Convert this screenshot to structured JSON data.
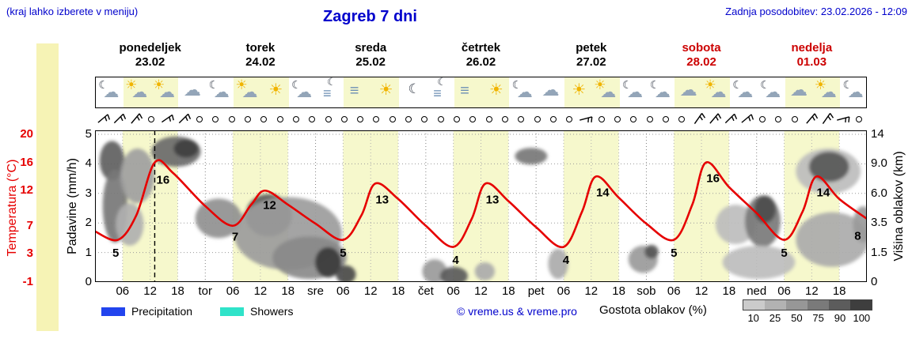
{
  "header": {
    "hint": "(kraj lahko izberete v meniju)",
    "title": "Zagreb 7 dni",
    "updated": "Zadnja posodobitev: 23.02.2026 - 12:09"
  },
  "days": [
    {
      "name": "ponedeljek",
      "date": "23.02",
      "color": "#000000"
    },
    {
      "name": "torek",
      "date": "24.02",
      "color": "#000000"
    },
    {
      "name": "sreda",
      "date": "25.02",
      "color": "#000000"
    },
    {
      "name": "četrtek",
      "date": "26.02",
      "color": "#000000"
    },
    {
      "name": "petek",
      "date": "27.02",
      "color": "#000000"
    },
    {
      "name": "sobota",
      "date": "28.02",
      "color": "#cc0000"
    },
    {
      "name": "nedelja",
      "date": "01.03",
      "color": "#cc0000"
    }
  ],
  "axes": {
    "temp_label": "Temperatura (°C)",
    "temp_ticks": [
      "20",
      "16",
      "12",
      "7",
      "3",
      "-1"
    ],
    "precip_label": "Padavine (mm/h)",
    "precip_ticks": [
      "5",
      "4",
      "3",
      "2",
      "1",
      "0"
    ],
    "cloud_label": "Višina oblakov (km)",
    "cloud_ticks": [
      "14",
      "9.0",
      "6.0",
      "3.5",
      "1.5",
      "0"
    ],
    "time_ticks": [
      "06",
      "12",
      "18"
    ],
    "day_abbrevs": [
      "tor",
      "sre",
      "čet",
      "pet",
      "sob",
      "ned"
    ]
  },
  "legend": {
    "precipitation": "Precipitation",
    "showers": "Showers",
    "credit": "© vreme.us & vreme.pro",
    "cloud_density": "Gostota oblakov (%)",
    "cloud_scale": [
      "10",
      "25",
      "50",
      "75",
      "90",
      "100"
    ],
    "cloud_scale_colors": [
      "#cbcbcb",
      "#b2b2b2",
      "#979797",
      "#7a7a7a",
      "#5c5c5c",
      "#3e3e3e"
    ],
    "precip_color": "#2244ee",
    "showers_color": "#2fe3c9"
  },
  "chart_data": {
    "type": "line",
    "title": "Zagreb 7 dni",
    "x_axis": {
      "unit": "hours from 23.02 00:00",
      "range": [
        0,
        168
      ],
      "ticks_per_day": [
        "06",
        "12",
        "18"
      ]
    },
    "y_axes": {
      "temperature_c": {
        "label": "Temperatura (°C)",
        "ticks": [
          20,
          16,
          12,
          7,
          3,
          -1
        ],
        "range": [
          -1,
          20
        ]
      },
      "precipitation_mm_h": {
        "label": "Padavine (mm/h)",
        "ticks": [
          5,
          4,
          3,
          2,
          1,
          0
        ],
        "range": [
          0,
          5
        ]
      },
      "cloud_height_km": {
        "label": "Višina oblakov (km)",
        "ticks": [
          14,
          9.0,
          6.0,
          3.5,
          1.5,
          0
        ]
      }
    },
    "now_h": 13,
    "colors": {
      "day_band": "#f6f8cc",
      "temperature": "#e60000"
    },
    "series": [
      {
        "name": "Temperatura",
        "color": "#e60000",
        "points_h_degC": [
          [
            0,
            6.2
          ],
          [
            5,
            5.0
          ],
          [
            9,
            8.5
          ],
          [
            13,
            16
          ],
          [
            17,
            14.5
          ],
          [
            24,
            9.8
          ],
          [
            30,
            7.0
          ],
          [
            34,
            10
          ],
          [
            37,
            12
          ],
          [
            42,
            10
          ],
          [
            48,
            7.3
          ],
          [
            54,
            5.0
          ],
          [
            58,
            8.5
          ],
          [
            61,
            13
          ],
          [
            66,
            10.8
          ],
          [
            72,
            7
          ],
          [
            78,
            4.0
          ],
          [
            82,
            8
          ],
          [
            85,
            13
          ],
          [
            90,
            10.5
          ],
          [
            96,
            6.8
          ],
          [
            102,
            4.0
          ],
          [
            106,
            9
          ],
          [
            109,
            14
          ],
          [
            114,
            11
          ],
          [
            120,
            7.3
          ],
          [
            126,
            5.0
          ],
          [
            130,
            10
          ],
          [
            133,
            16
          ],
          [
            138,
            12.5
          ],
          [
            144,
            8.8
          ],
          [
            150,
            5.0
          ],
          [
            154,
            9
          ],
          [
            157,
            14
          ],
          [
            162,
            10.8
          ],
          [
            168,
            8.0
          ]
        ]
      }
    ],
    "extreme_labels": [
      [
        4.5,
        2.6,
        "5"
      ],
      [
        14.8,
        13.0,
        "16"
      ],
      [
        30.5,
        4.9,
        "7"
      ],
      [
        38,
        9.4,
        "12"
      ],
      [
        54,
        2.6,
        "5"
      ],
      [
        62.5,
        10.2,
        "13"
      ],
      [
        78.5,
        1.6,
        "4"
      ],
      [
        86.5,
        10.2,
        "13"
      ],
      [
        102.5,
        1.6,
        "4"
      ],
      [
        110.5,
        11.2,
        "14"
      ],
      [
        126,
        2.6,
        "5"
      ],
      [
        134.5,
        13.2,
        "16"
      ],
      [
        150,
        2.6,
        "5"
      ],
      [
        158.5,
        11.2,
        "14"
      ],
      [
        166,
        5.0,
        "8"
      ]
    ],
    "daily_min_max": [
      {
        "date": "23.02",
        "min": 5,
        "max": 16
      },
      {
        "date": "24.02",
        "min": 7,
        "max": 12
      },
      {
        "date": "25.02",
        "min": 5,
        "max": 13
      },
      {
        "date": "26.02",
        "min": 4,
        "max": 13
      },
      {
        "date": "27.02",
        "min": 4,
        "max": 14
      },
      {
        "date": "28.02",
        "min": 5,
        "max": 16
      },
      {
        "date": "01.03",
        "min": 5,
        "max": 14,
        "end": 8
      }
    ],
    "weather_icons": [
      "mc",
      "sc",
      "sc",
      "c",
      "mc",
      "sc",
      "s",
      "mc",
      "fm",
      "f",
      "s",
      "m",
      "fm",
      "f",
      "s",
      "mc",
      "c",
      "s",
      "sc",
      "mc",
      "mc",
      "c",
      "sc",
      "mc",
      "mc",
      "c",
      "sc",
      "mc"
    ],
    "wind": [
      "b50",
      "b45",
      "b40",
      "o",
      "b55",
      "b45",
      "o",
      "o",
      "o",
      "o",
      "o",
      "o",
      "o",
      "o",
      "o",
      "o",
      "o",
      "o",
      "o",
      "o",
      "o",
      "o",
      "o",
      "o",
      "o",
      "o",
      "o",
      "o",
      "o",
      "o",
      "b75",
      "o",
      "o",
      "o",
      "o",
      "o",
      "o",
      "b35",
      "b40",
      "b45",
      "b50",
      "o",
      "o",
      "o",
      "b40",
      "b35",
      "b75",
      "o"
    ],
    "cloud_blobs": [
      [
        0.022,
        0.2,
        0.016,
        0.13,
        "#606060"
      ],
      [
        0.026,
        0.5,
        0.016,
        0.24,
        "#787878"
      ],
      [
        0.055,
        0.3,
        0.022,
        0.18,
        "#a0a0a0"
      ],
      [
        0.045,
        0.62,
        0.018,
        0.14,
        "#b0b0b0"
      ],
      [
        0.105,
        0.14,
        0.032,
        0.1,
        "#6a6a6a"
      ],
      [
        0.118,
        0.12,
        0.016,
        0.06,
        "#3f3f3f"
      ],
      [
        0.16,
        0.58,
        0.03,
        0.13,
        "#909090"
      ],
      [
        0.225,
        0.56,
        0.03,
        0.14,
        "#5a5a5a"
      ],
      [
        0.25,
        0.68,
        0.07,
        0.24,
        "#9c9c9c"
      ],
      [
        0.278,
        0.84,
        0.048,
        0.14,
        "#8a8a8a"
      ],
      [
        0.302,
        0.87,
        0.017,
        0.1,
        "#3a3a3a"
      ],
      [
        0.325,
        0.95,
        0.013,
        0.06,
        "#4a4a4a"
      ],
      [
        0.44,
        0.93,
        0.016,
        0.08,
        "#9a9a9a"
      ],
      [
        0.465,
        0.96,
        0.018,
        0.06,
        "#5a5a5a"
      ],
      [
        0.505,
        0.93,
        0.013,
        0.06,
        "#ababab"
      ],
      [
        0.565,
        0.17,
        0.021,
        0.055,
        "#787878"
      ],
      [
        0.6,
        0.88,
        0.013,
        0.1,
        "#ababab"
      ],
      [
        0.71,
        0.85,
        0.019,
        0.09,
        "#9a9a9a"
      ],
      [
        0.721,
        0.8,
        0.009,
        0.045,
        "#565656"
      ],
      [
        0.83,
        0.62,
        0.026,
        0.13,
        "#bdbdbd"
      ],
      [
        0.865,
        0.6,
        0.023,
        0.17,
        "#7a7a7a"
      ],
      [
        0.868,
        0.52,
        0.014,
        0.09,
        "#4c4c4c"
      ],
      [
        0.86,
        0.87,
        0.047,
        0.11,
        "#bdbdbd"
      ],
      [
        0.955,
        0.72,
        0.047,
        0.18,
        "#ababab"
      ],
      [
        0.95,
        0.27,
        0.042,
        0.15,
        "#bdbdbd"
      ],
      [
        0.951,
        0.24,
        0.026,
        0.1,
        "#585858"
      ],
      [
        0.995,
        0.62,
        0.013,
        0.12,
        "#9a9a9a"
      ]
    ]
  }
}
